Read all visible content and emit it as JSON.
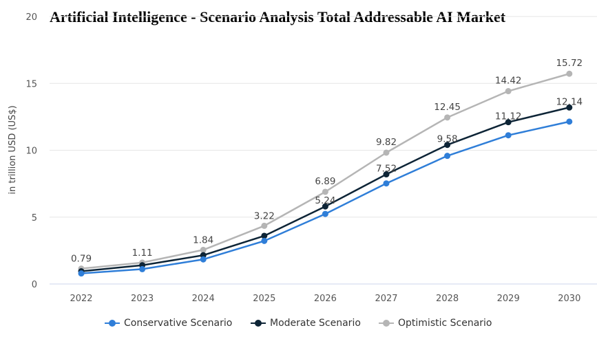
{
  "chart_data": {
    "type": "line",
    "title": "Artificial Intelligence - Scenario Analysis Total Addressable AI Market",
    "xlabel": "",
    "ylabel": "in trillion USD (US$)",
    "x": [
      "2022",
      "2023",
      "2024",
      "2025",
      "2026",
      "2027",
      "2028",
      "2029",
      "2030"
    ],
    "ylim": [
      0,
      20
    ],
    "yticks": [
      "0",
      "5",
      "10",
      "15",
      "20"
    ],
    "grid": true,
    "legend_position": "bottom",
    "series": [
      {
        "name": "Conservative Scenario",
        "color": "#2f7ed8",
        "values": [
          0.79,
          1.11,
          1.84,
          3.22,
          5.24,
          7.52,
          9.58,
          11.12,
          12.14
        ],
        "labels": [
          "0.79",
          "1.11",
          "1.84",
          "3.22",
          "5.24",
          "7.52",
          "9.58",
          "11.12",
          "12.14"
        ]
      },
      {
        "name": "Moderate Scenario",
        "color": "#0d2436",
        "values": [
          0.95,
          1.4,
          2.15,
          3.6,
          5.8,
          8.2,
          10.4,
          12.1,
          13.2
        ]
      },
      {
        "name": "Optimistic Scenario",
        "color": "#b5b5b5",
        "values": [
          1.15,
          1.6,
          2.55,
          4.35,
          6.89,
          9.82,
          12.45,
          14.42,
          15.72
        ],
        "labels": [
          "",
          "",
          "",
          "",
          "6.89",
          "9.82",
          "12.45",
          "14.42",
          "15.72"
        ]
      }
    ]
  }
}
